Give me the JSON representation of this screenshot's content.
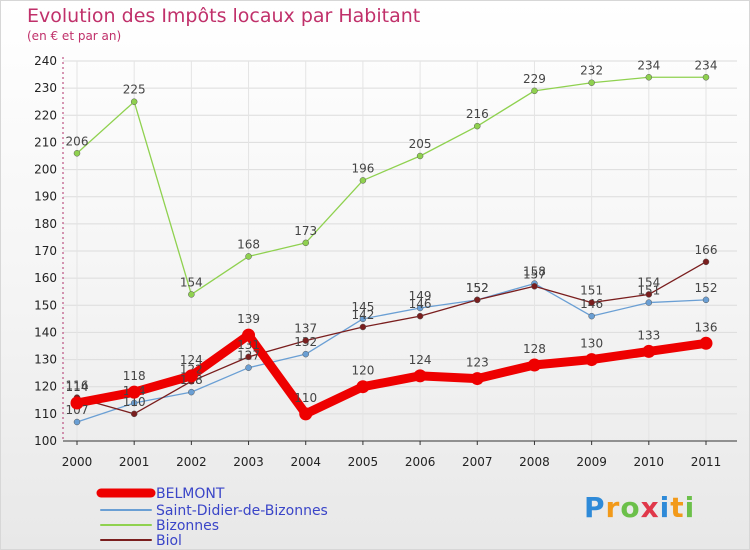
{
  "chart_data": {
    "type": "line",
    "title": "Evolution des Impôts locaux par Habitant",
    "subtitle": "(en € et par an)",
    "categories": [
      "2000",
      "2001",
      "2002",
      "2003",
      "2004",
      "2005",
      "2006",
      "2007",
      "2008",
      "2009",
      "2010",
      "2011"
    ],
    "ylim": [
      100,
      240
    ],
    "yticks": [
      100,
      110,
      120,
      130,
      140,
      150,
      160,
      170,
      180,
      190,
      200,
      210,
      220,
      230,
      240
    ],
    "series": [
      {
        "name": "Bizonnes",
        "color": "#8fd14f",
        "values": [
          206,
          225,
          154,
          168,
          173,
          196,
          205,
          216,
          229,
          232,
          234,
          234
        ]
      },
      {
        "name": "Saint-Didier-de-Bizonnes",
        "color": "#6a9fd4",
        "values": [
          107,
          114,
          118,
          127,
          132,
          145,
          149,
          152,
          158,
          146,
          151,
          152
        ]
      },
      {
        "name": "Biol",
        "color": "#7a1e1e",
        "values": [
          116,
          110,
          122,
          131,
          137,
          142,
          146,
          152,
          157,
          151,
          154,
          166
        ]
      },
      {
        "name": "BELMONT",
        "color": "#ee0000",
        "values": [
          114,
          118,
          124,
          139,
          110,
          120,
          124,
          123,
          128,
          130,
          133,
          136
        ]
      }
    ],
    "legend": [
      "BELMONT",
      "Saint-Didier-de-Bizonnes",
      "Bizonnes",
      "Biol"
    ]
  },
  "logo": {
    "text": "Proxiti",
    "letters": [
      "P",
      "r",
      "o",
      "x",
      "i",
      "t",
      "i"
    ],
    "colors": [
      "#2e8ad8",
      "#f29a1a",
      "#6cc04a",
      "#e0384a",
      "#2e8ad8",
      "#f29a1a",
      "#6cc04a"
    ]
  }
}
